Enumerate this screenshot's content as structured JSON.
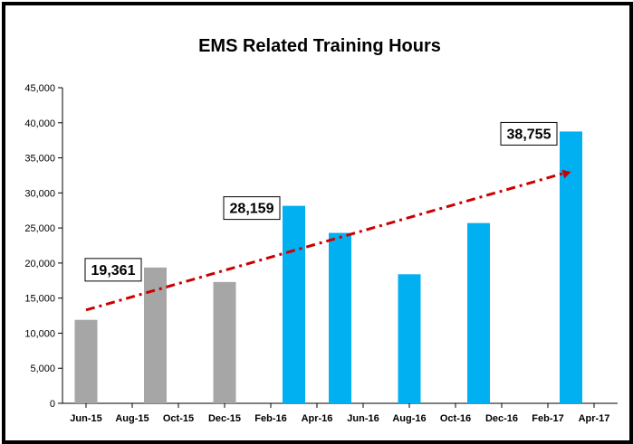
{
  "chart_data": {
    "type": "bar",
    "title": "EMS Related Training Hours",
    "xlabel": "",
    "ylabel": "",
    "ylim": [
      0,
      45000
    ],
    "yticks": [
      0,
      5000,
      10000,
      15000,
      20000,
      25000,
      30000,
      35000,
      40000,
      45000
    ],
    "ytick_labels": [
      "0",
      "5,000",
      "10,000",
      "15,000",
      "20,000",
      "25,000",
      "30,000",
      "35,000",
      "40,000",
      "45,000"
    ],
    "x_ticks": [
      "Jun-15",
      "Aug-15",
      "Oct-15",
      "Dec-15",
      "Feb-16",
      "Apr-16",
      "Jun-16",
      "Aug-16",
      "Oct-16",
      "Dec-16",
      "Feb-17",
      "Apr-17"
    ],
    "x_start": "2015-06-01",
    "x_end": "2017-04-01",
    "bars": [
      {
        "x": "2015-06-01",
        "value": 11900,
        "color": "#a6a6a6"
      },
      {
        "x": "2015-09-01",
        "value": 19361,
        "color": "#a6a6a6",
        "label": "19,361"
      },
      {
        "x": "2015-12-01",
        "value": 17300,
        "color": "#a6a6a6"
      },
      {
        "x": "2016-03-01",
        "value": 28159,
        "color": "#00b0f0",
        "label": "28,159"
      },
      {
        "x": "2016-05-01",
        "value": 24300,
        "color": "#00b0f0"
      },
      {
        "x": "2016-08-01",
        "value": 18400,
        "color": "#00b0f0"
      },
      {
        "x": "2016-11-01",
        "value": 25700,
        "color": "#00b0f0"
      },
      {
        "x": "2017-03-01",
        "value": 38755,
        "color": "#00b0f0",
        "label": "38,755"
      }
    ],
    "trendline": {
      "style": "dash-dot",
      "color": "#cc0000",
      "from": {
        "x": "2015-06-01",
        "y": 13300
      },
      "to": {
        "x": "2017-03-01",
        "y": 33000
      }
    },
    "grid": false,
    "legend": "none"
  }
}
